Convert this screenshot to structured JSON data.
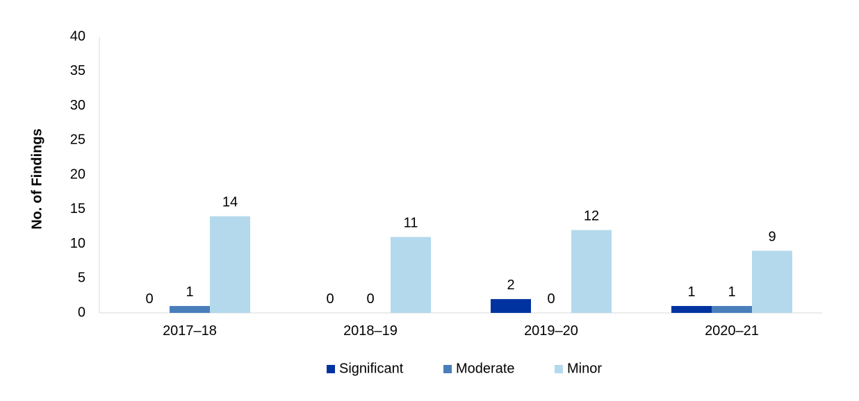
{
  "chart_data": {
    "type": "bar",
    "ylabel": "No. of Findings",
    "xlabel": "",
    "ylim": [
      0,
      40
    ],
    "yticks": [
      0,
      5,
      10,
      15,
      20,
      25,
      30,
      35,
      40
    ],
    "categories": [
      "2017–18",
      "2018–19",
      "2019–20",
      "2020–21"
    ],
    "series": [
      {
        "name": "Significant",
        "color": "#0033A0",
        "values": [
          0,
          0,
          2,
          1
        ]
      },
      {
        "name": "Moderate",
        "color": "#4A7EBB",
        "values": [
          1,
          0,
          0,
          1
        ]
      },
      {
        "name": "Minor",
        "color": "#B4D9EC",
        "values": [
          14,
          11,
          12,
          9
        ]
      }
    ],
    "data_labels": true,
    "legend_position": "bottom",
    "grid": false
  }
}
